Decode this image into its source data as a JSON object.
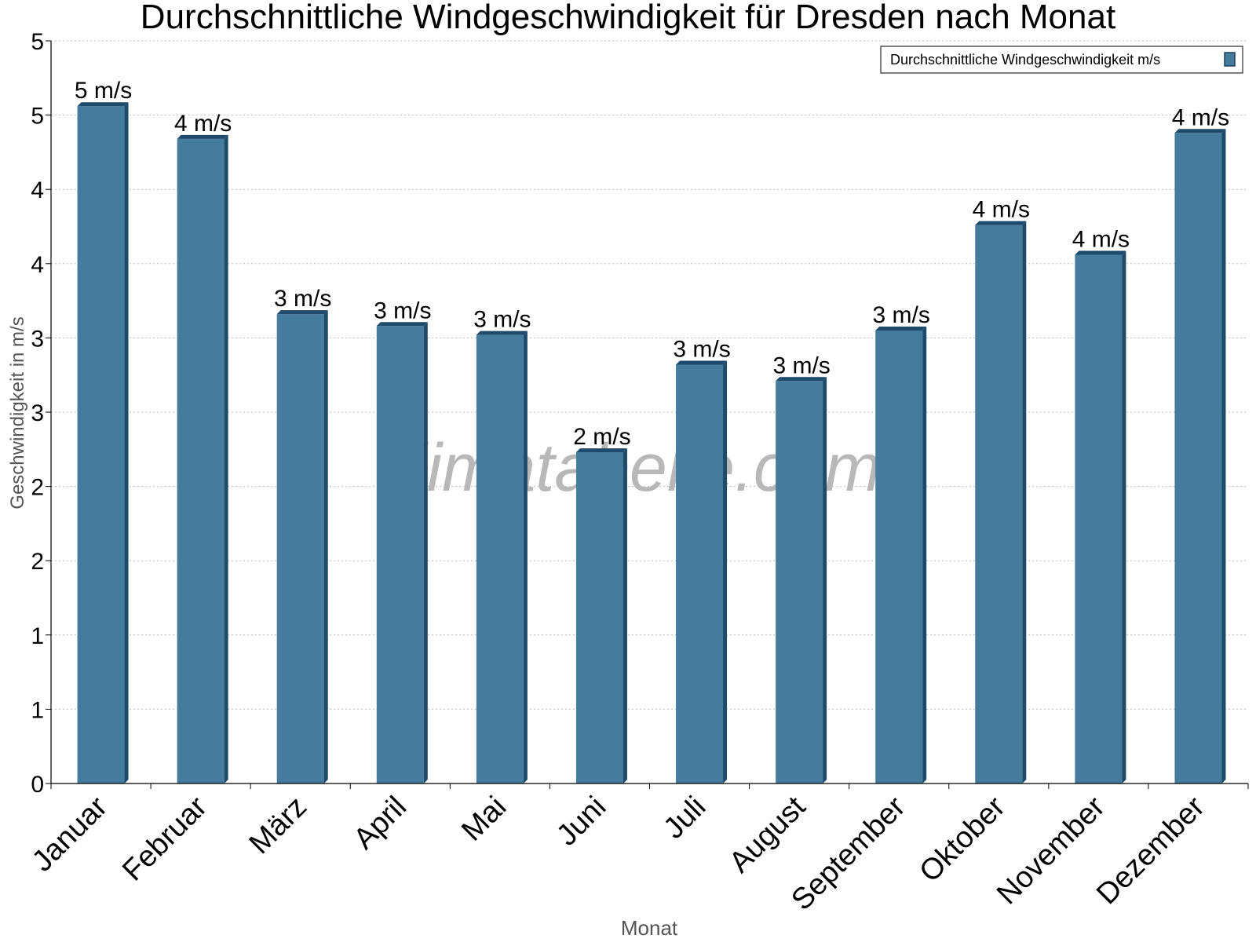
{
  "chart_data": {
    "type": "bar",
    "title": "Durchschnittliche Windgeschwindigkeit für Dresden nach Monat",
    "xlabel": "Monat",
    "ylabel": "Geschwindigkeit in m/s",
    "ylim": [
      0,
      5
    ],
    "yticks": [
      0,
      0.5,
      1,
      1.5,
      2,
      2.5,
      3,
      3.5,
      4,
      4.5,
      5
    ],
    "ytick_labels": [
      "0",
      "1",
      "1",
      "2",
      "2",
      "3",
      "3",
      "4",
      "4",
      "5",
      "5"
    ],
    "grid": true,
    "legend": {
      "position": "top-right",
      "entries": [
        "Durchschnittliche Windgeschwindigkeit m/s"
      ]
    },
    "watermark": "klimatabelle.com",
    "categories": [
      "Januar",
      "Februar",
      "März",
      "April",
      "Mai",
      "Juni",
      "Juli",
      "August",
      "September",
      "Oktober",
      "November",
      "Dezember"
    ],
    "series": [
      {
        "name": "Durchschnittliche Windgeschwindigkeit m/s",
        "color": "#457b9d",
        "values": [
          4.56,
          4.34,
          3.16,
          3.08,
          3.02,
          2.23,
          2.82,
          2.71,
          3.05,
          3.76,
          3.56,
          4.38
        ],
        "labels": [
          "5 m/s",
          "4 m/s",
          "3 m/s",
          "3 m/s",
          "3 m/s",
          "2 m/s",
          "3 m/s",
          "3 m/s",
          "3 m/s",
          "4 m/s",
          "4 m/s",
          "4 m/s"
        ]
      }
    ]
  }
}
